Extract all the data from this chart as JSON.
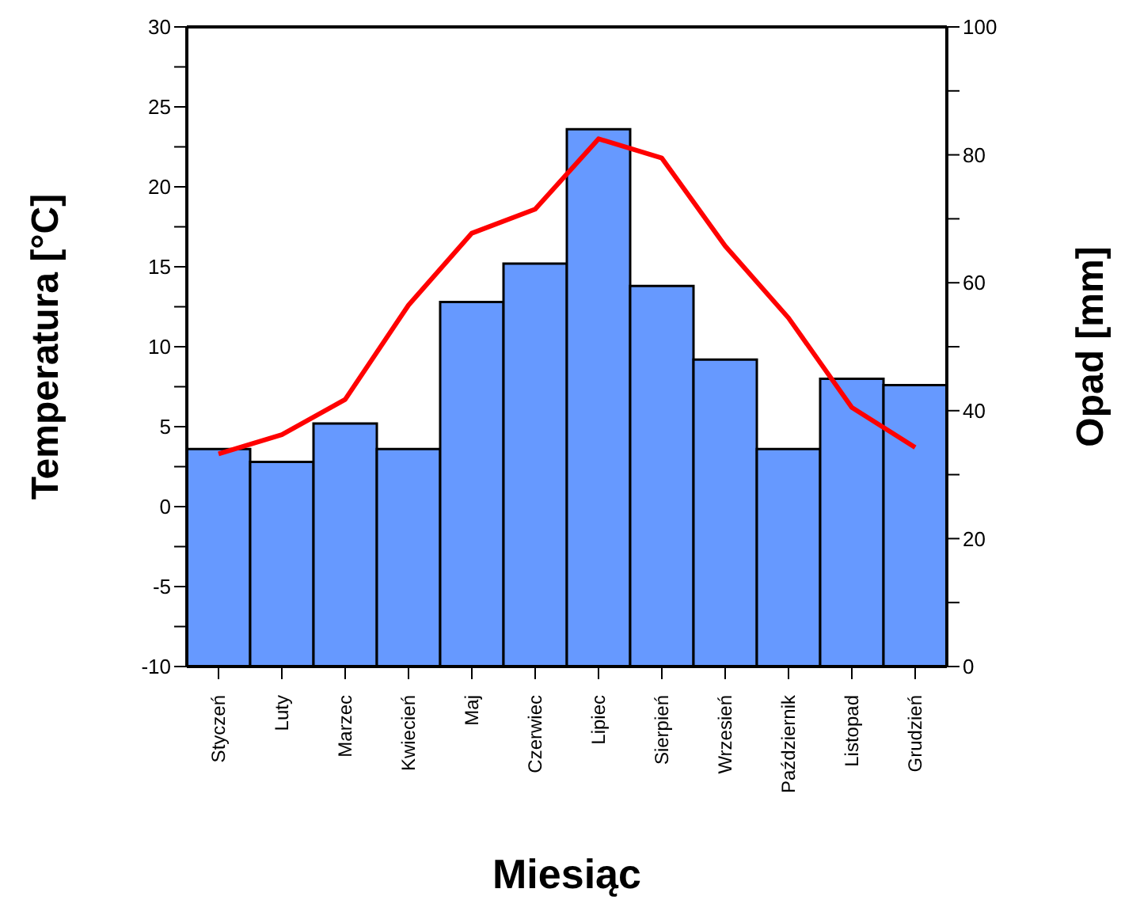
{
  "chart_data": {
    "type": "bar",
    "xlabel": "Miesiąc",
    "ylabel": "Temperatura [°C]",
    "y2label": "Opad [mm]",
    "categories": [
      "Styczeń",
      "Luty",
      "Marzec",
      "Kwiecień",
      "Maj",
      "Czerwiec",
      "Lipiec",
      "Sierpień",
      "Wrzesień",
      "Październik",
      "Listopad",
      "Grudzień"
    ],
    "series": [
      {
        "axis": "y2",
        "color": "#6699ff",
        "values": [
          34,
          32,
          38,
          34,
          57,
          63,
          84,
          59.5,
          48,
          34,
          45,
          44
        ]
      },
      {
        "type": "line",
        "axis": "y",
        "color": "#ff0000",
        "values": [
          3.3,
          4.5,
          6.7,
          12.6,
          17.1,
          18.6,
          23.0,
          21.8,
          16.3,
          11.8,
          6.2,
          3.7
        ]
      }
    ],
    "ylim": [
      -10,
      30
    ],
    "yticks": [
      -10,
      {
        "value": -7.5,
        "label": null
      },
      -5,
      {
        "value": -2.5,
        "label": null
      },
      0,
      {
        "value": 2.5,
        "label": null
      },
      5,
      {
        "value": 7.5,
        "label": null
      },
      10,
      {
        "value": 12.5,
        "label": null
      },
      15,
      {
        "value": 17.5,
        "label": null
      },
      20,
      {
        "value": 22.5,
        "label": null
      },
      25,
      {
        "value": 27.5,
        "label": null
      },
      30
    ],
    "y2lim": [
      0,
      100
    ],
    "y2ticks": [
      0,
      {
        "value": 10,
        "label": null
      },
      20,
      {
        "value": 30,
        "label": null
      },
      40,
      {
        "value": 50,
        "label": null
      },
      60,
      {
        "value": 70,
        "label": null
      },
      80,
      {
        "value": 90,
        "label": null
      },
      100
    ],
    "grid": false,
    "legend": false,
    "marker": "none",
    "line_style": "solid"
  }
}
